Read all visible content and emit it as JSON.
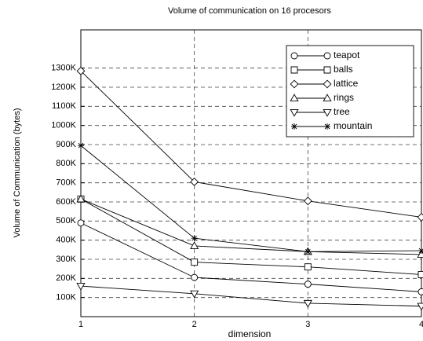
{
  "chart_data": {
    "type": "line",
    "title": "Volume of communication on 16 procesors",
    "x_label": "dimension",
    "y_label": "Volume of Communication (bytes)",
    "x": [
      1,
      2,
      3,
      4
    ],
    "xlim": [
      1,
      4
    ],
    "xticks": [
      1,
      2,
      3,
      4
    ],
    "ylim": [
      0,
      1500
    ],
    "yticks": [
      {
        "value": 100,
        "label": "100K"
      },
      {
        "value": 200,
        "label": "200K"
      },
      {
        "value": 300,
        "label": "300K"
      },
      {
        "value": 400,
        "label": "400K"
      },
      {
        "value": 500,
        "label": "500K"
      },
      {
        "value": 600,
        "label": "600K"
      },
      {
        "value": 700,
        "label": "700K"
      },
      {
        "value": 800,
        "label": "800K"
      },
      {
        "value": 900,
        "label": "900K"
      },
      {
        "value": 1000,
        "label": "1000K"
      },
      {
        "value": 1100,
        "label": "1100K"
      },
      {
        "value": 1200,
        "label": "1200K"
      },
      {
        "value": 1300,
        "label": "1300K"
      }
    ],
    "grid": true,
    "legend": "upper right",
    "series": [
      {
        "name": "teapot",
        "color": "#000000",
        "marker": "circle",
        "values": [
          490,
          205,
          170,
          130
        ]
      },
      {
        "name": "balls",
        "color": "#000000",
        "marker": "square",
        "values": [
          615,
          285,
          260,
          220
        ]
      },
      {
        "name": "lattice",
        "color": "#000000",
        "marker": "diamond",
        "values": [
          1285,
          705,
          605,
          520
        ]
      },
      {
        "name": "rings",
        "color": "#000000",
        "marker": "triangle-up",
        "values": [
          615,
          370,
          340,
          325
        ]
      },
      {
        "name": "tree",
        "color": "#000000",
        "marker": "triangle-down",
        "values": [
          160,
          120,
          70,
          55
        ]
      },
      {
        "name": "mountain",
        "color": "#000000",
        "marker": "star",
        "values": [
          895,
          410,
          340,
          345
        ]
      }
    ]
  }
}
